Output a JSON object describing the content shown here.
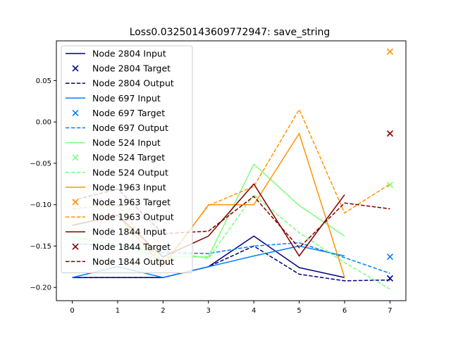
{
  "chart_data": {
    "type": "line",
    "title": "Loss0.03250143609772947: save_string",
    "xlabel": "",
    "ylabel": "",
    "xlim": [
      -0.35,
      7.35
    ],
    "ylim": [
      -0.216,
      0.098
    ],
    "x_ticks": [
      0,
      1,
      2,
      3,
      4,
      5,
      6,
      7
    ],
    "y_ticks": [
      0.05,
      0.0,
      -0.05,
      -0.1,
      -0.15,
      -0.2
    ],
    "y_tick_labels": [
      "0.05",
      "0.00",
      "−0.05",
      "−0.10",
      "−0.15",
      "−0.20"
    ],
    "grid": false,
    "legend_position": "upper-left",
    "x": [
      0,
      1,
      2,
      3,
      4,
      5,
      6
    ],
    "target_x": 7,
    "output_x": [
      0,
      1,
      2,
      3,
      4,
      5,
      6,
      7
    ],
    "series": [
      {
        "node": "Node 2804",
        "color": "#000080",
        "input_label": "Node 2804 Input",
        "target_label": "Node 2804 Target",
        "output_label": "Node 2804 Output",
        "input": [
          -0.188,
          -0.188,
          -0.188,
          -0.175,
          -0.138,
          -0.176,
          -0.188
        ],
        "target": -0.189,
        "output": [
          -0.188,
          -0.188,
          -0.188,
          -0.175,
          -0.15,
          -0.184,
          -0.192,
          -0.191
        ]
      },
      {
        "node": "Node 697",
        "color": "#0080ff",
        "input_label": "Node 697 Input",
        "target_label": "Node 697 Target",
        "output_label": "Node 697 Output",
        "input": [
          -0.188,
          -0.175,
          -0.188,
          -0.175,
          -0.162,
          -0.15,
          -0.162
        ],
        "target": -0.163,
        "output": [
          -0.147,
          -0.15,
          -0.158,
          -0.159,
          -0.15,
          -0.146,
          -0.164,
          -0.183
        ]
      },
      {
        "node": "Node 524",
        "color": "#7dff7a",
        "input_label": "Node 524 Input",
        "target_label": "Node 524 Target",
        "output_label": "Node 524 Output",
        "input": [
          -0.138,
          -0.15,
          -0.163,
          -0.163,
          -0.051,
          -0.101,
          -0.138
        ],
        "target": -0.076,
        "output": [
          -0.14,
          -0.148,
          -0.155,
          -0.165,
          -0.088,
          -0.134,
          -0.17,
          -0.202
        ]
      },
      {
        "node": "Node 1963",
        "color": "#ff9400",
        "input_label": "Node 1963 Input",
        "target_label": "Node 1963 Target",
        "output_label": "Node 1963 Output",
        "input": [
          -0.125,
          -0.113,
          -0.175,
          -0.1,
          -0.1,
          -0.014,
          -0.188
        ],
        "target": 0.085,
        "output": [
          -0.105,
          -0.1,
          -0.172,
          -0.101,
          -0.078,
          0.015,
          -0.11,
          -0.075
        ]
      },
      {
        "node": "Node 1844",
        "color": "#800000",
        "input_label": "Node 1844 Input",
        "target_label": "Node 1844 Target",
        "output_label": "Node 1844 Output",
        "input": [
          -0.125,
          -0.113,
          -0.163,
          -0.138,
          -0.075,
          -0.162,
          -0.088
        ],
        "target": -0.014,
        "output": [
          -0.095,
          -0.081,
          -0.135,
          -0.132,
          -0.09,
          -0.152,
          -0.098,
          -0.105
        ]
      }
    ]
  }
}
